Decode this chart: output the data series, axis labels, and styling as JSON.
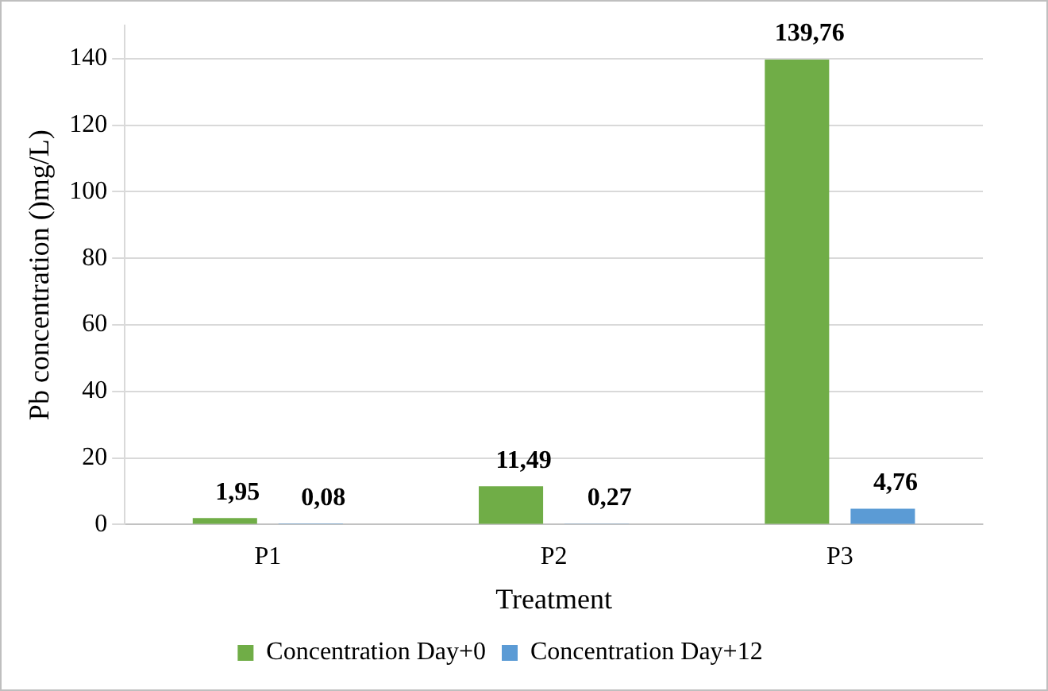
{
  "chart_data": {
    "type": "bar",
    "xlabel": "Treatment",
    "ylabel": "Pb concentration ()mg/L)",
    "categories": [
      "P1",
      "P2",
      "P3"
    ],
    "series": [
      {
        "name": "Concentration Day+0",
        "color": "#70ad47",
        "values": [
          1.95,
          11.49,
          139.76
        ],
        "value_labels": [
          "1,95",
          "11,49",
          "139,76"
        ]
      },
      {
        "name": "Concentration Day+12",
        "color": "#5b9bd5",
        "values": [
          0.08,
          0.27,
          4.76
        ],
        "value_labels": [
          "0,08",
          "0,27",
          "4,76"
        ]
      }
    ],
    "ylim": [
      0,
      150
    ],
    "yticks": [
      0,
      20,
      40,
      60,
      80,
      100,
      120,
      140
    ],
    "grid": "y",
    "legend": "bottom"
  }
}
